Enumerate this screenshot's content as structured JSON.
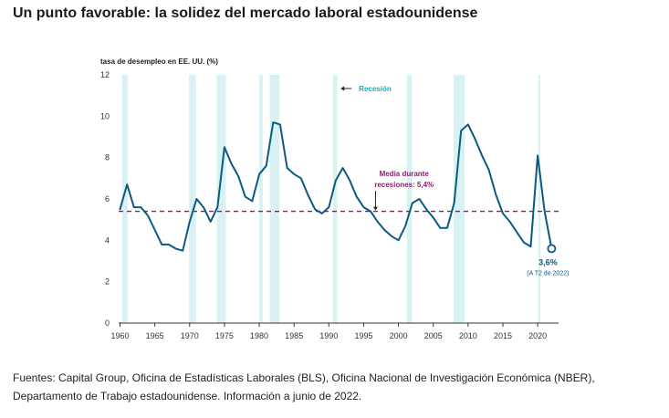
{
  "page": {
    "title": "Un punto favorable: la solidez del mercado laboral estadounidense",
    "footer_label": "Fuentes:",
    "footer_text": "Capital Group, Oficina de Estadísticas Laborales (BLS), Oficina Nacional de Investigación Económica (NBER), Departamento de Trabajo estadounidense. Información a junio de 2022."
  },
  "colors": {
    "line": "#0c5a80",
    "recession_band": "#d8f2f4",
    "mean_line": "#8a1e6e",
    "recession_label": "#20a9b5",
    "axis": "#333333"
  },
  "chart_data": {
    "type": "line",
    "title": "Un punto favorable: la solidez del mercado laboral estadounidense",
    "ylabel": "tasa de desempleo en EE. UU. (%)",
    "xlabel": "",
    "xlim": [
      1959.8,
      2023
    ],
    "ylim": [
      0,
      12
    ],
    "x_ticks": [
      1960,
      1965,
      1970,
      1975,
      1980,
      1985,
      1990,
      1995,
      2000,
      2005,
      2010,
      2015,
      2020
    ],
    "y_ticks": [
      0,
      2,
      4,
      6,
      8,
      10,
      12
    ],
    "grid": false,
    "series": [
      {
        "name": "Tasa de desempleo",
        "x": [
          1960,
          1961,
          1962,
          1963,
          1964,
          1965,
          1966,
          1967,
          1968,
          1969,
          1970,
          1971,
          1972,
          1973,
          1974,
          1975,
          1976,
          1977,
          1978,
          1979,
          1980,
          1981,
          1982,
          1983,
          1984,
          1985,
          1986,
          1987,
          1988,
          1989,
          1990,
          1991,
          1992,
          1993,
          1994,
          1995,
          1996,
          1997,
          1998,
          1999,
          2000,
          2001,
          2002,
          2003,
          2004,
          2005,
          2006,
          2007,
          2008,
          2009,
          2010,
          2011,
          2012,
          2013,
          2014,
          2015,
          2016,
          2017,
          2018,
          2019,
          2020,
          2021,
          2022
        ],
        "values": [
          5.5,
          6.7,
          5.6,
          5.6,
          5.2,
          4.5,
          3.8,
          3.8,
          3.6,
          3.5,
          4.9,
          6.0,
          5.6,
          4.9,
          5.6,
          8.5,
          7.7,
          7.1,
          6.1,
          5.9,
          7.2,
          7.6,
          9.7,
          9.6,
          7.5,
          7.2,
          7.0,
          6.2,
          5.5,
          5.3,
          5.6,
          6.9,
          7.5,
          6.9,
          6.1,
          5.6,
          5.4,
          4.9,
          4.5,
          4.2,
          4.0,
          4.7,
          5.8,
          6.0,
          5.5,
          5.1,
          4.6,
          4.6,
          5.8,
          9.3,
          9.6,
          8.9,
          8.1,
          7.4,
          6.2,
          5.3,
          4.9,
          4.4,
          3.9,
          3.7,
          8.1,
          5.4,
          3.6
        ]
      }
    ],
    "recessions": [
      {
        "start": 1960.3,
        "end": 1961.1
      },
      {
        "start": 1969.9,
        "end": 1970.9
      },
      {
        "start": 1973.9,
        "end": 1975.2
      },
      {
        "start": 1980.0,
        "end": 1980.5
      },
      {
        "start": 1981.5,
        "end": 1982.9
      },
      {
        "start": 1990.6,
        "end": 1991.2
      },
      {
        "start": 2001.2,
        "end": 2001.9
      },
      {
        "start": 2007.9,
        "end": 2009.5
      },
      {
        "start": 2020.1,
        "end": 2020.4
      }
    ],
    "recession_label": "Recesión",
    "mean_value": 5.4,
    "mean_label_line1": "Media durante",
    "mean_label_line2": "recesiones: 5,4%",
    "end_point": {
      "x": 2022,
      "y": 3.6
    },
    "end_label": "3,6%",
    "end_sublabel": "(A T2 de 2022)"
  }
}
